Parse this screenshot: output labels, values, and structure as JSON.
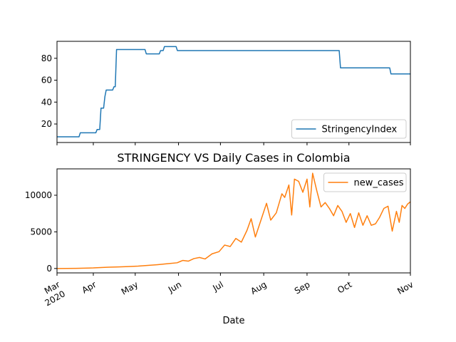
{
  "title": "STRINGENCY VS Daily Cases in Colombia",
  "xlabel": "Date",
  "chart_data": [
    {
      "type": "line",
      "series": [
        {
          "name": "StringencyIndex",
          "color": "#1f77b4",
          "points": [
            [
              "2020-02-15",
              8.3
            ],
            [
              "2020-03-03",
              8.3
            ],
            [
              "2020-03-04",
              12
            ],
            [
              "2020-03-16",
              12
            ],
            [
              "2020-03-17",
              15
            ],
            [
              "2020-03-19",
              15
            ],
            [
              "2020-03-20",
              34.5
            ],
            [
              "2020-03-22",
              34.5
            ],
            [
              "2020-03-23",
              45
            ],
            [
              "2020-03-24",
              51
            ],
            [
              "2020-03-29",
              51
            ],
            [
              "2020-03-30",
              54
            ],
            [
              "2020-03-31",
              54
            ],
            [
              "2020-04-01",
              88
            ],
            [
              "2020-04-23",
              88
            ],
            [
              "2020-04-24",
              84
            ],
            [
              "2020-05-04",
              84
            ],
            [
              "2020-05-05",
              87
            ],
            [
              "2020-05-07",
              87
            ],
            [
              "2020-05-08",
              90.7
            ],
            [
              "2020-05-17",
              90.7
            ],
            [
              "2020-05-18",
              87
            ],
            [
              "2020-09-20",
              87
            ],
            [
              "2020-09-21",
              71.3
            ],
            [
              "2020-10-29",
              71.3
            ],
            [
              "2020-10-30",
              65.7
            ],
            [
              "2020-11-14",
              65.7
            ]
          ]
        }
      ],
      "xlim": [
        "2020-02-15",
        "2020-11-14"
      ],
      "yticks": [
        20,
        40,
        60,
        80
      ],
      "ylim": [
        3.1,
        95.5
      ],
      "legend": "lower-right"
    },
    {
      "type": "line",
      "series": [
        {
          "name": "new_cases",
          "color": "#ff7f0e",
          "points": [
            [
              "2020-02-15",
              0
            ],
            [
              "2020-03-20",
              25
            ],
            [
              "2020-04-01",
              80
            ],
            [
              "2020-04-05",
              120
            ],
            [
              "2020-04-12",
              180
            ],
            [
              "2020-04-19",
              220
            ],
            [
              "2020-04-26",
              260
            ],
            [
              "2020-05-03",
              320
            ],
            [
              "2020-05-10",
              420
            ],
            [
              "2020-05-17",
              520
            ],
            [
              "2020-05-24",
              650
            ],
            [
              "2020-05-31",
              780
            ],
            [
              "2020-06-04",
              1100
            ],
            [
              "2020-06-08",
              1000
            ],
            [
              "2020-06-12",
              1350
            ],
            [
              "2020-06-16",
              1500
            ],
            [
              "2020-06-20",
              1300
            ],
            [
              "2020-06-25",
              2000
            ],
            [
              "2020-06-30",
              2300
            ],
            [
              "2020-07-04",
              3200
            ],
            [
              "2020-07-08",
              3000
            ],
            [
              "2020-07-12",
              4100
            ],
            [
              "2020-07-16",
              3600
            ],
            [
              "2020-07-20",
              5200
            ],
            [
              "2020-07-23",
              6800
            ],
            [
              "2020-07-26",
              4300
            ],
            [
              "2020-07-30",
              6600
            ],
            [
              "2020-08-03",
              8900
            ],
            [
              "2020-08-06",
              6600
            ],
            [
              "2020-08-10",
              7600
            ],
            [
              "2020-08-14",
              10200
            ],
            [
              "2020-08-16",
              9700
            ],
            [
              "2020-08-19",
              11400
            ],
            [
              "2020-08-21",
              7300
            ],
            [
              "2020-08-23",
              12200
            ],
            [
              "2020-08-26",
              11900
            ],
            [
              "2020-08-29",
              10400
            ],
            [
              "2020-09-01",
              12200
            ],
            [
              "2020-09-03",
              8400
            ],
            [
              "2020-09-05",
              13000
            ],
            [
              "2020-09-08",
              10600
            ],
            [
              "2020-09-11",
              8400
            ],
            [
              "2020-09-14",
              9000
            ],
            [
              "2020-09-17",
              8200
            ],
            [
              "2020-09-20",
              7200
            ],
            [
              "2020-09-23",
              8600
            ],
            [
              "2020-09-26",
              7800
            ],
            [
              "2020-09-29",
              6300
            ],
            [
              "2020-10-02",
              7500
            ],
            [
              "2020-10-05",
              5600
            ],
            [
              "2020-10-08",
              7600
            ],
            [
              "2020-10-11",
              5900
            ],
            [
              "2020-10-14",
              7200
            ],
            [
              "2020-10-17",
              5900
            ],
            [
              "2020-10-20",
              6100
            ],
            [
              "2020-10-23",
              7000
            ],
            [
              "2020-10-26",
              8200
            ],
            [
              "2020-10-29",
              8500
            ],
            [
              "2020-11-01",
              5100
            ],
            [
              "2020-11-04",
              7800
            ],
            [
              "2020-11-06",
              6300
            ],
            [
              "2020-11-08",
              8600
            ],
            [
              "2020-11-10",
              8200
            ],
            [
              "2020-11-12",
              8800
            ],
            [
              "2020-11-14",
              9100
            ]
          ]
        }
      ],
      "xlim": [
        "2020-03-06",
        "2020-11-14"
      ],
      "yticks": [
        0,
        5000,
        10000
      ],
      "ylim": [
        -600,
        13600
      ],
      "legend": "upper-right"
    }
  ],
  "xticks": [
    {
      "date": "2020-03-06",
      "label": "Mar",
      "sublabel": "2020"
    },
    {
      "date": "2020-04-01",
      "label": "Apr"
    },
    {
      "date": "2020-05-01",
      "label": "May"
    },
    {
      "date": "2020-06-01",
      "label": "Jun"
    },
    {
      "date": "2020-07-01",
      "label": "Jul"
    },
    {
      "date": "2020-08-01",
      "label": "Aug"
    },
    {
      "date": "2020-09-01",
      "label": "Sep"
    },
    {
      "date": "2020-10-01",
      "label": "Oct"
    },
    {
      "date": "2020-11-14",
      "label": "Nov"
    }
  ]
}
